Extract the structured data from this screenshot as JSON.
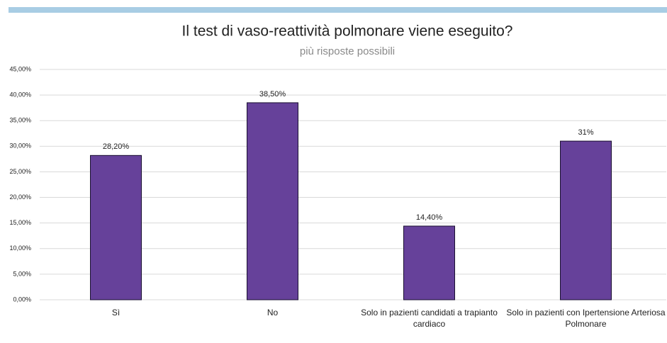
{
  "chart_data": {
    "type": "bar",
    "title": "Il test di vaso-reattività polmonare viene eseguito?",
    "subtitle": "più risposte possibili",
    "categories": [
      "Sì",
      "No",
      "Solo in pazienti candidati a trapianto cardiaco",
      "Solo in pazienti con Ipertensione Arteriosa Polmonare"
    ],
    "values": [
      28.2,
      38.5,
      14.4,
      31
    ],
    "value_labels": [
      "28,20%",
      "38,50%",
      "14,40%",
      "31%"
    ],
    "color": "#66419a",
    "ylim": [
      0,
      45
    ],
    "yticks": [
      {
        "value": 0,
        "label": "0,00%"
      },
      {
        "value": 5,
        "label": "5,00%"
      },
      {
        "value": 10,
        "label": "10,00%"
      },
      {
        "value": 15,
        "label": "15,00%"
      },
      {
        "value": 20,
        "label": "20,00%"
      },
      {
        "value": 25,
        "label": "25,00%"
      },
      {
        "value": 30,
        "label": "30,00%"
      },
      {
        "value": 35,
        "label": "35,00%"
      },
      {
        "value": 40,
        "label": "40,00%"
      },
      {
        "value": 45,
        "label": "45,00%"
      }
    ],
    "grid": true
  }
}
